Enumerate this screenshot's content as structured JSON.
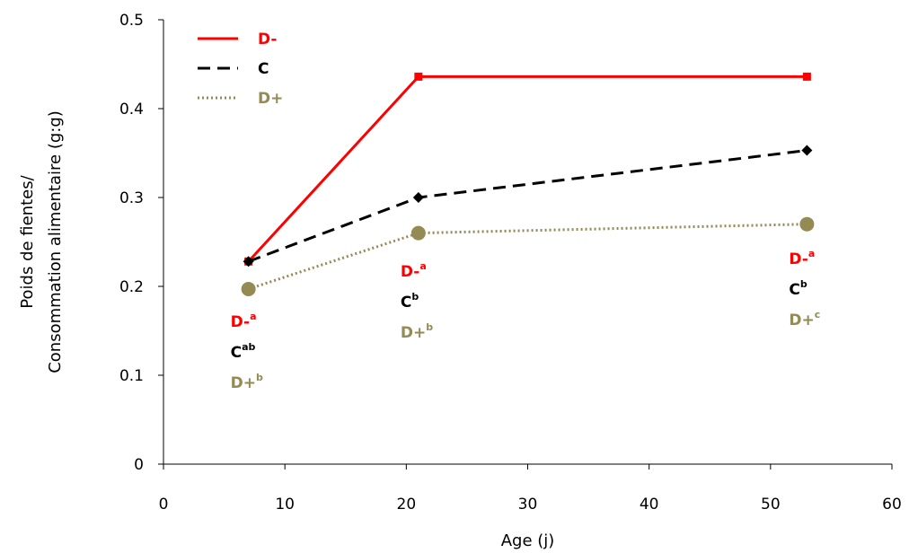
{
  "chart_data": {
    "type": "line",
    "title": "",
    "xlabel": "Age (j)",
    "ylabel_lines": [
      "Poids de fientes/",
      "Consommation alimentaire (g:g)"
    ],
    "xlim": [
      0,
      60
    ],
    "ylim": [
      0,
      0.5
    ],
    "xticks": [
      0,
      10,
      20,
      30,
      40,
      50,
      60
    ],
    "yticks": [
      0,
      0.1,
      0.2,
      0.3,
      0.4,
      0.5
    ],
    "xtick_labels": [
      "0",
      "10",
      "20",
      "30",
      "40",
      "50",
      "60"
    ],
    "ytick_labels": [
      "0",
      "0.1",
      "0.2",
      "0.3",
      "0.4",
      "0.5"
    ],
    "grid": false,
    "legend_position": "top-left",
    "series": [
      {
        "name": "D-",
        "color": "#ff0000",
        "style": "solid",
        "marker": "square",
        "x": [
          7,
          21,
          53
        ],
        "y": [
          0.228,
          0.436,
          0.436
        ]
      },
      {
        "name": "C",
        "color": "#000000",
        "style": "dashed",
        "marker": "diamond",
        "x": [
          7,
          21,
          53
        ],
        "y": [
          0.228,
          0.3,
          0.353
        ]
      },
      {
        "name": "D+",
        "color": "#948a54",
        "style": "dotted",
        "marker": "circle",
        "x": [
          7,
          21,
          53
        ],
        "y": [
          0.197,
          0.26,
          0.27
        ]
      }
    ],
    "annotations": [
      {
        "x_day": 7,
        "labels": [
          {
            "series": "D-",
            "text": "D-",
            "sup": "a"
          },
          {
            "series": "C",
            "text": "C",
            "sup": "ab"
          },
          {
            "series": "D+",
            "text": "D+",
            "sup": "b"
          }
        ]
      },
      {
        "x_day": 21,
        "labels": [
          {
            "series": "D-",
            "text": "D-",
            "sup": "a"
          },
          {
            "series": "C",
            "text": "C",
            "sup": "b"
          },
          {
            "series": "D+",
            "text": "D+",
            "sup": "b"
          }
        ]
      },
      {
        "x_day": 53,
        "labels": [
          {
            "series": "D-",
            "text": "D-",
            "sup": "a"
          },
          {
            "series": "C",
            "text": "C",
            "sup": "b"
          },
          {
            "series": "D+",
            "text": "D+",
            "sup": "c"
          }
        ]
      }
    ]
  }
}
